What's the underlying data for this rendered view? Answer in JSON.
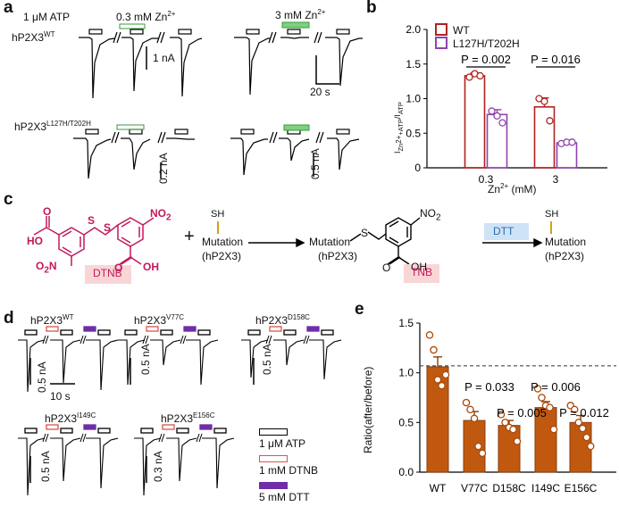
{
  "panels": {
    "a": "a",
    "b": "b",
    "c": "c",
    "d": "d",
    "e": "e"
  },
  "panel_a": {
    "wt_label": "hP2X3",
    "wt_sup": "WT",
    "mut_label": "hP2X3",
    "mut_sup": "L127H/T202H",
    "atp": "1 μM ATP",
    "zn_low": "0.3 mM Zn",
    "zn_high": "3 mM Zn",
    "zn_sup": "2+",
    "scale_1na": "1 nA",
    "scale_20s": "20 s",
    "scale_02na": "0.2 nA",
    "scale_05na": "0.5 nA",
    "colors": {
      "atp_bar": "#000000",
      "zn_bar": "#5cb85c"
    }
  },
  "panel_b": {
    "ylabel_main": "I",
    "ylabel_sub1": "Zn",
    "ylabel_sup1": "2+",
    "ylabel_sub1b": "+ATP",
    "ylabel_sub2": "ATP",
    "xlabel": "Zn",
    "xlabel_sup": "2+",
    "xlabel_unit": "(mM)",
    "pvals": [
      "P = 0.002",
      "P = 0.016"
    ]
  },
  "panel_c": {
    "dtnb": "DTNB",
    "tnb": "TNB",
    "dtt": "DTT",
    "sh": "SH",
    "no2": "NO",
    "no2_sub": "2",
    "o2n": "O",
    "o2n_sub": "2",
    "o2n_n": "N",
    "ho": "HO",
    "oh": "OH",
    "o": "O",
    "s": "S",
    "plus": "+",
    "mutation": "Mutation",
    "hp2x3": "(hP2X3)",
    "colors": {
      "chem": "#c2185b",
      "dtt_box": "#cfe3f7",
      "dtnb_box": "#f9d6d6"
    }
  },
  "panel_d": {
    "constructs": [
      {
        "name": "hP2X3",
        "sup": "WT"
      },
      {
        "name": "hP2X3",
        "sup": "V77C"
      },
      {
        "name": "hP2X3",
        "sup": "D158C"
      },
      {
        "name": "hP2X3",
        "sup": "I149C"
      },
      {
        "name": "hP2X3",
        "sup": "E156C"
      }
    ],
    "scales": [
      "0.5 nA",
      "10 s",
      "0.5 nA",
      "0.5 nA",
      "0.5 nA",
      "0.3 nA"
    ],
    "legend": [
      {
        "label": "1 μM ATP",
        "color": "#000000"
      },
      {
        "label": "1 mM DTNB",
        "color": "#d9534f"
      },
      {
        "label": "5 mM DTT",
        "color": "#6f2da8"
      }
    ]
  },
  "chart_data": [
    {
      "type": "bar",
      "panel": "b",
      "categories": [
        "0.3",
        "3"
      ],
      "series": [
        {
          "name": "WT",
          "color": "#b22222",
          "values": [
            1.33,
            0.88
          ],
          "errors": [
            0.04,
            0.13
          ],
          "points": [
            [
              1.31,
              1.36,
              1.33
            ],
            [
              1.0,
              0.96,
              0.68
            ]
          ]
        },
        {
          "name": "L127H/T202H",
          "color": "#8e44ad",
          "values": [
            0.77,
            0.36
          ],
          "errors": [
            0.07,
            0.01
          ],
          "points": [
            [
              0.82,
              0.75,
              0.65
            ],
            [
              0.35,
              0.37,
              0.37
            ]
          ]
        }
      ],
      "ylim": [
        0,
        2.0
      ],
      "yticks": [
        "0",
        "0.5",
        "1.0",
        "1.5",
        "2.0"
      ],
      "legend_position": "top-right"
    },
    {
      "type": "bar",
      "panel": "e",
      "categories": [
        "WT",
        "V77C",
        "D158C",
        "I149C",
        "E156C"
      ],
      "values": [
        1.06,
        0.52,
        0.47,
        0.65,
        0.5
      ],
      "errors": [
        0.1,
        0.09,
        0.05,
        0.06,
        0.07
      ],
      "points": [
        [
          1.38,
          1.23,
          0.93,
          0.87,
          0.98
        ],
        [
          0.7,
          0.63,
          0.54,
          0.26,
          0.19
        ],
        [
          0.58,
          0.5,
          0.45,
          0.43,
          0.31
        ],
        [
          0.84,
          0.75,
          0.67,
          0.65,
          0.43
        ],
        [
          0.67,
          0.63,
          0.5,
          0.44,
          0.35,
          0.26
        ]
      ],
      "reference_line": 1.07,
      "ylabel": "Ratio(after/before)",
      "ylim": [
        0,
        1.5
      ],
      "yticks": [
        "0.0",
        "0.5",
        "1.0",
        "1.5"
      ],
      "pvals": [
        "P = 0.033",
        "P = 0.005",
        "P = 0.006",
        "P = 0.012"
      ],
      "bar_color": "#c0590f"
    }
  ]
}
